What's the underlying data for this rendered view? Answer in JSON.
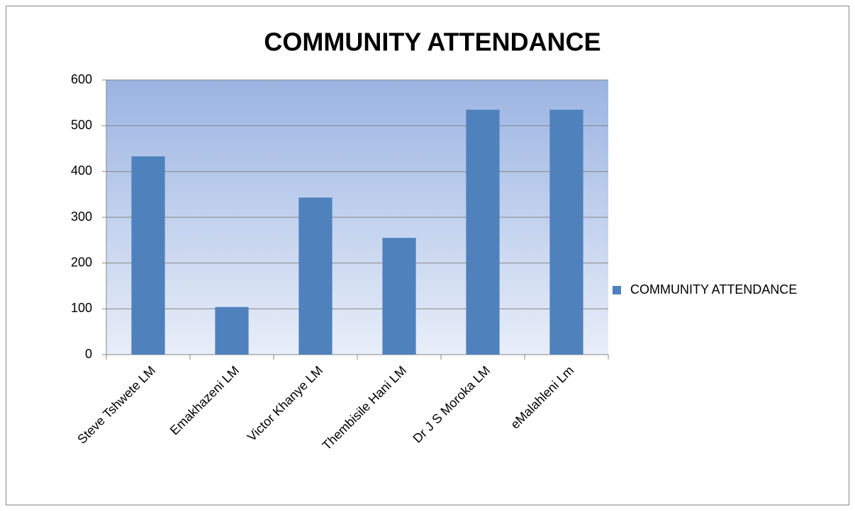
{
  "chart_data": {
    "type": "bar",
    "title": "COMMUNITY ATTENDANCE",
    "categories": [
      "Steve Tshwete LM",
      "Emakhazeni LM",
      "Victor Khanye LM",
      "Thembisile Hani LM",
      "Dr J S Moroka LM",
      "eMalahleni Lm"
    ],
    "series": [
      {
        "name": "COMMUNITY ATTENDANCE",
        "color": "#4f81bd",
        "values": [
          433,
          104,
          343,
          255,
          535,
          535
        ]
      }
    ],
    "ylim": [
      0,
      600
    ],
    "yticks": [
      0,
      100,
      200,
      300,
      400,
      500,
      600
    ],
    "grid": true,
    "legend": "right"
  }
}
